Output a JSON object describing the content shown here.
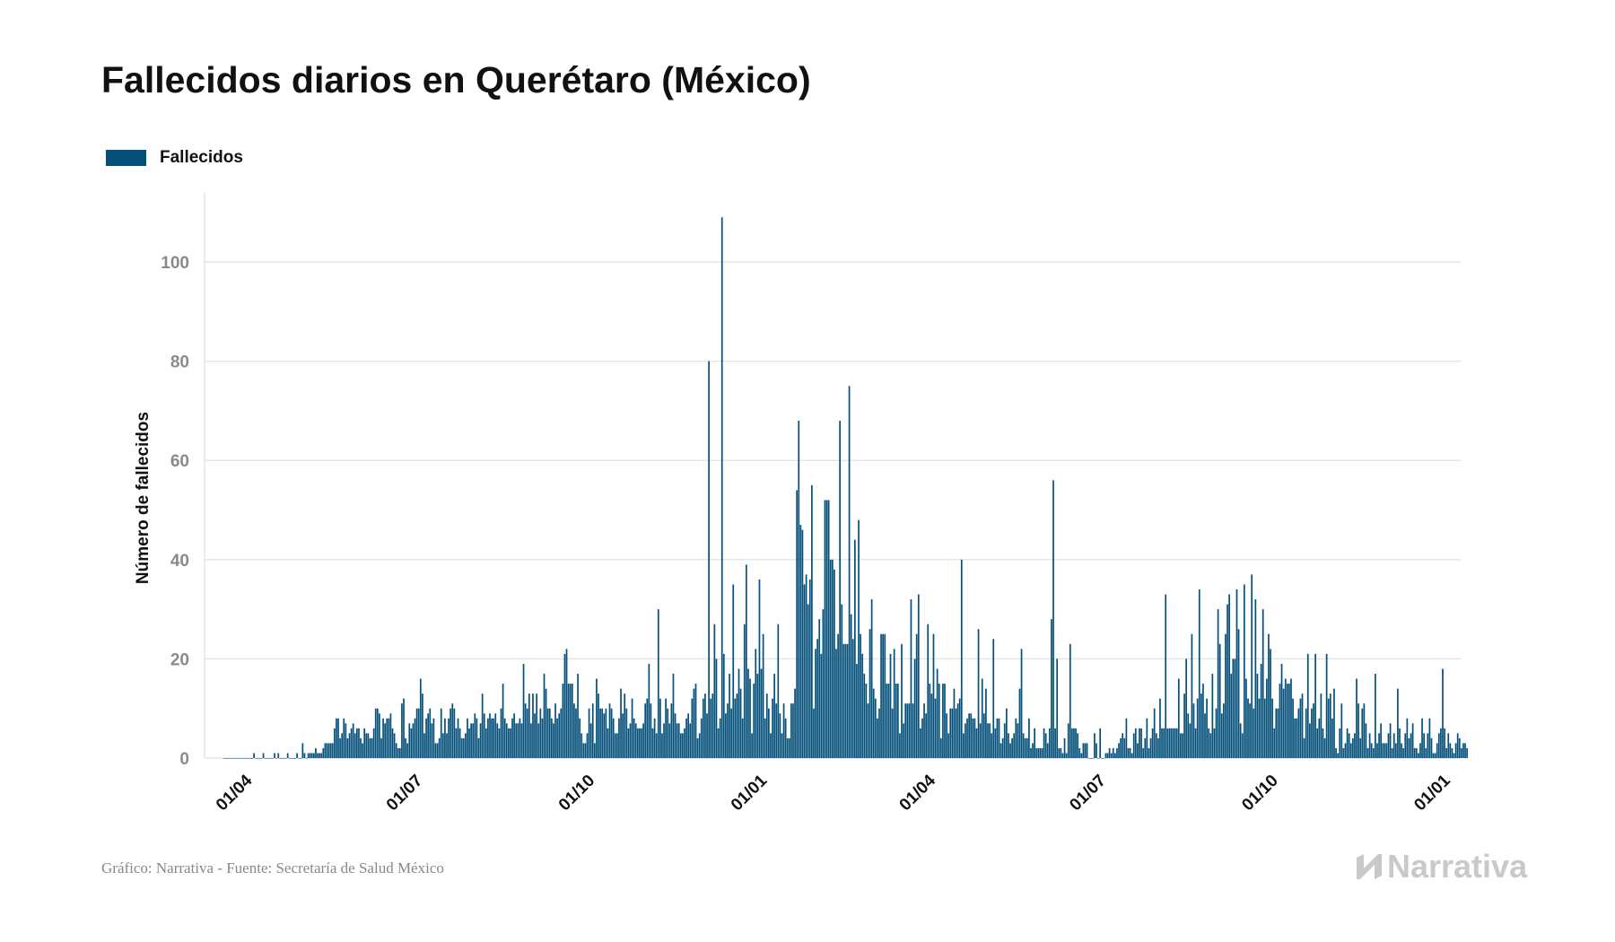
{
  "title": "Fallecidos diarios en Querétaro (México)",
  "legend": {
    "label": "Fallecidos"
  },
  "footer": {
    "source": "Gráfico: Narrativa - Fuente: Secretaría de Salud México"
  },
  "brand": {
    "name": "Narrativa",
    "icon": "narrativa-logo-icon"
  },
  "colors": {
    "bar": "#04507a",
    "grid": "#e6e6e6",
    "tick": "#8a8a8a",
    "text": "#111111",
    "brand": "#c9c9c9"
  },
  "chart_data": {
    "type": "bar",
    "title": "Fallecidos diarios en Querétaro (México)",
    "xlabel": "",
    "ylabel": "Número de fallecidos",
    "ylim": [
      0,
      112
    ],
    "yticks": [
      0,
      20,
      40,
      60,
      80,
      100
    ],
    "grid": true,
    "legend_position": "top-left",
    "x_start": "2020-03-10",
    "x_end": "2022-01-10",
    "xticks": [
      {
        "date": "2020-04-01",
        "label": "01/04"
      },
      {
        "date": "2020-07-01",
        "label": "01/07"
      },
      {
        "date": "2020-10-01",
        "label": "01/10"
      },
      {
        "date": "2021-01-01",
        "label": "01/01"
      },
      {
        "date": "2021-04-01",
        "label": "01/04"
      },
      {
        "date": "2021-07-01",
        "label": "01/07"
      },
      {
        "date": "2021-10-01",
        "label": "01/10"
      },
      {
        "date": "2022-01-01",
        "label": "01/01"
      }
    ],
    "series": [
      {
        "name": "Fallecidos",
        "first_date": "2020-03-20",
        "values": [
          0,
          0,
          0,
          0,
          0,
          0,
          0,
          0,
          0,
          0,
          0,
          0,
          0,
          0,
          0,
          0,
          1,
          0,
          0,
          0,
          0,
          1,
          0,
          0,
          0,
          0,
          0,
          1,
          0,
          1,
          0,
          0,
          0,
          0,
          1,
          0,
          0,
          0,
          0,
          1,
          0,
          0,
          3,
          1,
          0,
          1,
          1,
          1,
          1,
          2,
          1,
          1,
          1,
          2,
          3,
          3,
          3,
          3,
          3,
          6,
          8,
          8,
          4,
          5,
          8,
          7,
          4,
          5,
          6,
          7,
          5,
          6,
          6,
          4,
          3,
          6,
          5,
          5,
          4,
          4,
          6,
          10,
          10,
          9,
          4,
          8,
          7,
          8,
          8,
          9,
          6,
          5,
          3,
          2,
          2,
          11,
          12,
          4,
          3,
          7,
          6,
          7,
          8,
          10,
          10,
          16,
          13,
          5,
          8,
          9,
          10,
          7,
          8,
          3,
          3,
          4,
          10,
          5,
          8,
          5,
          8,
          10,
          11,
          10,
          6,
          8,
          6,
          4,
          4,
          5,
          8,
          6,
          7,
          7,
          9,
          8,
          4,
          7,
          13,
          9,
          6,
          8,
          9,
          8,
          8,
          9,
          7,
          6,
          10,
          15,
          8,
          7,
          6,
          6,
          8,
          9,
          7,
          7,
          8,
          7,
          19,
          11,
          10,
          13,
          7,
          13,
          9,
          13,
          7,
          10,
          8,
          17,
          14,
          10,
          10,
          8,
          7,
          11,
          8,
          9,
          10,
          15,
          21,
          22,
          15,
          15,
          15,
          11,
          10,
          17,
          8,
          5,
          3,
          3,
          5,
          10,
          7,
          11,
          3,
          16,
          13,
          10,
          10,
          9,
          10,
          6,
          11,
          10,
          8,
          5,
          5,
          8,
          14,
          9,
          13,
          10,
          6,
          7,
          12,
          8,
          7,
          6,
          6,
          6,
          7,
          11,
          12,
          19,
          11,
          6,
          8,
          5,
          30,
          12,
          5,
          7,
          12,
          10,
          7,
          11,
          17,
          9,
          7,
          7,
          5,
          5,
          6,
          8,
          9,
          7,
          12,
          14,
          15,
          4,
          5,
          8,
          12,
          13,
          9,
          80,
          12,
          13,
          27,
          20,
          6,
          8,
          109,
          21,
          9,
          11,
          17,
          10,
          35,
          12,
          13,
          18,
          14,
          8,
          27,
          39,
          18,
          16,
          5,
          15,
          22,
          17,
          36,
          18,
          25,
          8,
          13,
          10,
          5,
          12,
          17,
          11,
          27,
          9,
          5,
          11,
          8,
          4,
          4,
          11,
          11,
          14,
          54,
          68,
          47,
          46,
          35,
          37,
          31,
          36,
          55,
          10,
          22,
          24,
          28,
          21,
          30,
          52,
          52,
          52,
          40,
          40,
          38,
          22,
          25,
          68,
          31,
          23,
          23,
          23,
          75,
          29,
          24,
          44,
          19,
          48,
          25,
          21,
          17,
          15,
          11,
          26,
          32,
          14,
          12,
          8,
          10,
          25,
          25,
          25,
          15,
          15,
          21,
          10,
          22,
          15,
          15,
          5,
          23,
          7,
          11,
          11,
          11,
          32,
          11,
          20,
          25,
          33,
          6,
          8,
          11,
          9,
          27,
          15,
          13,
          25,
          12,
          18,
          15,
          4,
          15,
          15,
          9,
          5,
          10,
          10,
          14,
          10,
          11,
          12,
          40,
          5,
          7,
          8,
          9,
          9,
          8,
          8,
          6,
          26,
          7,
          16,
          9,
          14,
          7,
          7,
          5,
          24,
          6,
          8,
          8,
          3,
          4,
          7,
          10,
          5,
          3,
          4,
          5,
          8,
          7,
          14,
          22,
          5,
          4,
          4,
          8,
          2,
          3,
          6,
          2,
          2,
          2,
          2,
          6,
          5,
          3,
          6,
          28,
          56,
          6,
          20,
          2,
          2,
          1,
          4,
          1,
          7,
          23,
          6,
          6,
          6,
          5,
          2,
          1,
          3,
          3,
          3,
          0,
          0,
          0,
          5,
          3,
          0,
          6,
          0,
          0,
          1,
          1,
          2,
          1,
          2,
          1,
          2,
          3,
          4,
          5,
          4,
          8,
          2,
          2,
          1,
          5,
          6,
          3,
          6,
          6,
          2,
          4,
          8,
          2,
          4,
          6,
          10,
          5,
          4,
          12,
          6,
          6,
          33,
          6,
          6,
          6,
          6,
          6,
          6,
          16,
          5,
          5,
          13,
          20,
          9,
          7,
          25,
          11,
          6,
          12,
          34,
          13,
          15,
          9,
          12,
          6,
          5,
          17,
          6,
          10,
          30,
          23,
          9,
          11,
          25,
          31,
          33,
          17,
          20,
          20,
          34,
          26,
          7,
          5,
          35,
          16,
          12,
          11,
          37,
          10,
          32,
          17,
          12,
          19,
          30,
          12,
          16,
          25,
          22,
          12,
          6,
          10,
          10,
          15,
          19,
          14,
          16,
          15,
          15,
          16,
          12,
          8,
          8,
          10,
          12,
          13,
          4,
          10,
          21,
          7,
          10,
          11,
          21,
          6,
          8,
          13,
          6,
          4,
          21,
          12,
          13,
          8,
          14,
          2,
          1,
          6,
          11,
          2,
          3,
          6,
          5,
          3,
          4,
          5,
          16,
          11,
          4,
          10,
          11,
          7,
          2,
          5,
          3,
          2,
          17,
          3,
          5,
          7,
          3,
          3,
          3,
          5,
          7,
          2,
          5,
          3,
          14,
          6,
          3,
          2,
          5,
          8,
          4,
          5,
          7,
          2,
          2,
          1,
          3,
          8,
          5,
          2,
          5,
          8,
          4,
          1,
          1,
          3,
          5,
          6,
          18,
          6,
          2,
          5,
          3,
          2,
          1,
          3,
          5,
          4,
          2,
          3,
          3,
          2
        ]
      }
    ]
  }
}
